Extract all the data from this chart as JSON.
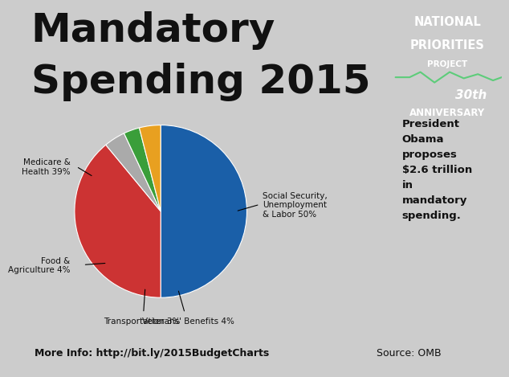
{
  "title_line1": "Mandatory",
  "title_line2": "Spending 2015",
  "title_fontsize": 36,
  "title_color": "#111111",
  "bg_color": "#cccccc",
  "chart_bg": "#ffffff",
  "right_panel_color": "#f5c200",
  "right_panel_top_color": "#2aaa4a",
  "pie_labels": [
    "Social Security,\nUnemployment\n& Labor 50%",
    "Medicare &\nHealth 39%",
    "Food &\nAgriculture 4%",
    "Transportation 3%",
    "Veterans' Benefits 4%"
  ],
  "pie_values": [
    50,
    39,
    4,
    3,
    4
  ],
  "pie_colors": [
    "#1a5fa8",
    "#cc3333",
    "#aaaaaa",
    "#3a9e3a",
    "#e8a020"
  ],
  "pie_startangle": 90,
  "npp_text1": "NATIONAL",
  "npp_text2": "PRIORITIES",
  "npp_text3": "PROJECT",
  "npp_30th": "30th",
  "npp_anniversary": "ANNIVERSARY",
  "sidebar_text": "President\nObama\nproposes\n$2.6 trillion\nin\nmandatory\nspending.",
  "footer_left": "More Info: http://bit.ly/2015BudgetCharts",
  "footer_right": "Source: OMB",
  "footer_bg": "#bbbbbb"
}
